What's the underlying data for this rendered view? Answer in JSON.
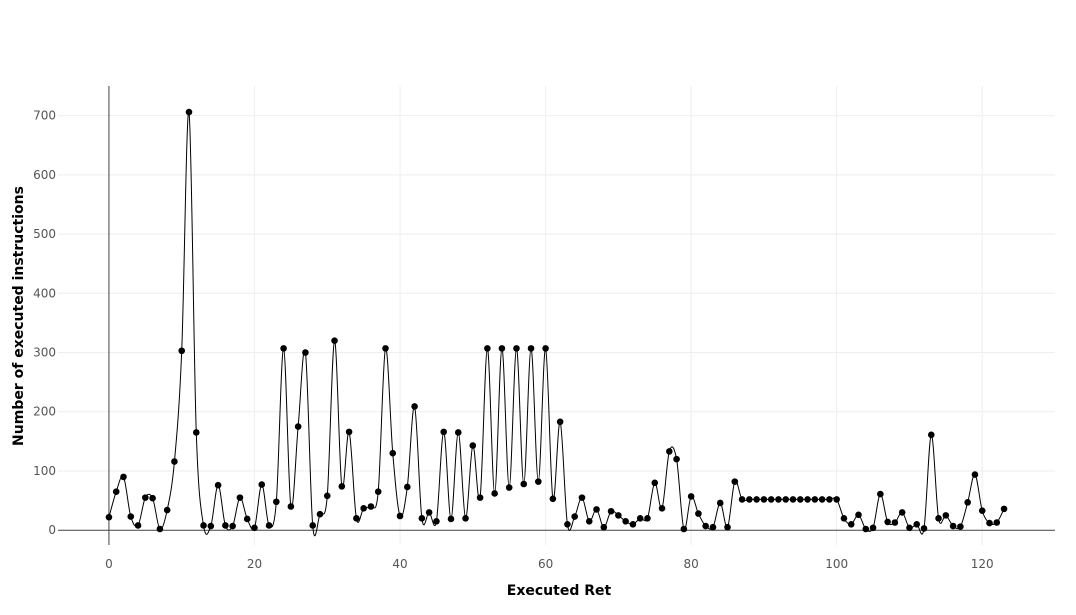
{
  "chart_data": {
    "type": "line",
    "title": "",
    "xlabel": "Executed Ret",
    "ylabel": "Number of executed instructions",
    "xlim": [
      -7,
      130
    ],
    "ylim": [
      -25,
      750
    ],
    "xticks": [
      0,
      20,
      40,
      60,
      80,
      100,
      120
    ],
    "yticks": [
      0,
      100,
      200,
      300,
      400,
      500,
      600,
      700
    ],
    "grid": true,
    "series": [
      {
        "x": [
          0,
          1,
          2,
          3,
          4,
          5,
          6,
          7,
          8,
          9,
          10,
          11,
          12,
          13,
          14,
          15,
          16,
          17,
          18,
          19,
          20,
          21,
          22,
          23,
          24,
          25,
          26,
          27,
          28,
          29,
          30,
          31,
          32,
          33,
          34,
          35,
          36,
          37,
          38,
          39,
          40,
          41,
          42,
          43,
          44,
          45,
          46,
          47,
          48,
          49,
          50,
          51,
          52,
          53,
          54,
          55,
          56,
          57,
          58,
          59,
          60,
          61,
          62,
          63,
          64,
          65,
          66,
          67,
          68,
          69,
          70,
          71,
          72,
          73,
          74,
          75,
          76,
          77,
          78,
          79,
          80,
          81,
          82,
          83,
          84,
          85,
          86,
          87,
          88,
          89,
          90,
          91,
          92,
          93,
          94,
          95,
          96,
          97,
          98,
          99,
          100,
          101,
          102,
          103,
          104,
          105,
          106,
          107,
          108,
          109,
          110,
          111,
          112,
          113,
          114,
          115,
          116,
          117,
          118,
          119,
          120,
          121,
          122,
          123
        ],
        "values": [
          22,
          65,
          90,
          23,
          8,
          55,
          54,
          2,
          34,
          116,
          303,
          706,
          165,
          8,
          7,
          76,
          8,
          7,
          55,
          19,
          4,
          77,
          8,
          48,
          307,
          40,
          175,
          300,
          8,
          27,
          58,
          320,
          74,
          166,
          20,
          37,
          40,
          65,
          307,
          130,
          24,
          73,
          209,
          20,
          30,
          15,
          166,
          19,
          165,
          20,
          143,
          55,
          307,
          62,
          307,
          72,
          307,
          78,
          307,
          82,
          307,
          53,
          183,
          10,
          23,
          55,
          15,
          35,
          5,
          32,
          25,
          15,
          10,
          20,
          20,
          80,
          37,
          133,
          120,
          2,
          57,
          28,
          7,
          5,
          46,
          5,
          82,
          52,
          52,
          52,
          52,
          52,
          52,
          52,
          52,
          52,
          52,
          52,
          52,
          52,
          52,
          20,
          10,
          26,
          2,
          4,
          61,
          14,
          13,
          30,
          4,
          10,
          3,
          161,
          20,
          25,
          7,
          6,
          47,
          94,
          33,
          12,
          13,
          36
        ]
      }
    ]
  }
}
